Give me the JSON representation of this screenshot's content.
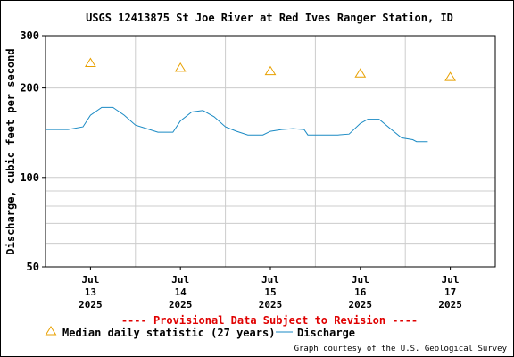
{
  "chart_data": {
    "type": "line",
    "title": "USGS 12413875 St Joe River at Red Ives Ranger Station, ID",
    "ylabel": "Discharge, cubic feet per second",
    "y_scale": "log",
    "ylim": [
      50,
      300
    ],
    "y_ticks": [
      50,
      100,
      200,
      300
    ],
    "y_tick_labels": [
      "50",
      "100",
      "200",
      "300"
    ],
    "x_range": [
      "2025-07-12 12:00",
      "2025-07-17 12:00"
    ],
    "x_ticks": [
      {
        "date": "2025-07-13",
        "lines": [
          "Jul",
          "13",
          "2025"
        ]
      },
      {
        "date": "2025-07-14",
        "lines": [
          "Jul",
          "14",
          "2025"
        ]
      },
      {
        "date": "2025-07-15",
        "lines": [
          "Jul",
          "15",
          "2025"
        ]
      },
      {
        "date": "2025-07-16",
        "lines": [
          "Jul",
          "16",
          "2025"
        ]
      },
      {
        "date": "2025-07-17",
        "lines": [
          "Jul",
          "17",
          "2025"
        ]
      }
    ],
    "grid": true,
    "series": [
      {
        "name": "Median daily statistic (27 years)",
        "type": "scatter",
        "marker": "triangle",
        "color": "#e8a000",
        "points": [
          {
            "x": "2025-07-13",
            "y": 243
          },
          {
            "x": "2025-07-14",
            "y": 234
          },
          {
            "x": "2025-07-15",
            "y": 228
          },
          {
            "x": "2025-07-16",
            "y": 224
          },
          {
            "x": "2025-07-17",
            "y": 218
          }
        ]
      },
      {
        "name": "Discharge",
        "type": "line",
        "color": "#1a8ac4",
        "points": [
          {
            "x": "2025-07-12 12:00",
            "y": 145
          },
          {
            "x": "2025-07-12 18:00",
            "y": 145
          },
          {
            "x": "2025-07-12 22:00",
            "y": 148
          },
          {
            "x": "2025-07-13 00:00",
            "y": 162
          },
          {
            "x": "2025-07-13 03:00",
            "y": 172
          },
          {
            "x": "2025-07-13 06:00",
            "y": 172
          },
          {
            "x": "2025-07-13 09:00",
            "y": 162
          },
          {
            "x": "2025-07-13 12:00",
            "y": 150
          },
          {
            "x": "2025-07-13 15:00",
            "y": 146
          },
          {
            "x": "2025-07-13 18:00",
            "y": 142
          },
          {
            "x": "2025-07-13 22:00",
            "y": 142
          },
          {
            "x": "2025-07-14 00:00",
            "y": 155
          },
          {
            "x": "2025-07-14 03:00",
            "y": 166
          },
          {
            "x": "2025-07-14 06:00",
            "y": 168
          },
          {
            "x": "2025-07-14 09:00",
            "y": 160
          },
          {
            "x": "2025-07-14 12:00",
            "y": 148
          },
          {
            "x": "2025-07-14 15:00",
            "y": 143
          },
          {
            "x": "2025-07-14 18:00",
            "y": 139
          },
          {
            "x": "2025-07-14 22:00",
            "y": 139
          },
          {
            "x": "2025-07-15 00:00",
            "y": 143
          },
          {
            "x": "2025-07-15 03:00",
            "y": 145
          },
          {
            "x": "2025-07-15 06:00",
            "y": 146
          },
          {
            "x": "2025-07-15 09:00",
            "y": 145
          },
          {
            "x": "2025-07-15 10:00",
            "y": 139
          },
          {
            "x": "2025-07-15 18:00",
            "y": 139
          },
          {
            "x": "2025-07-15 21:00",
            "y": 140
          },
          {
            "x": "2025-07-16 00:00",
            "y": 152
          },
          {
            "x": "2025-07-16 02:00",
            "y": 157
          },
          {
            "x": "2025-07-16 05:00",
            "y": 157
          },
          {
            "x": "2025-07-16 08:00",
            "y": 146
          },
          {
            "x": "2025-07-16 11:00",
            "y": 136
          },
          {
            "x": "2025-07-16 14:00",
            "y": 134
          },
          {
            "x": "2025-07-16 15:00",
            "y": 132
          },
          {
            "x": "2025-07-16 18:00",
            "y": 132
          }
        ]
      }
    ],
    "annotations": [
      "---- Provisional Data Subject to Revision ----"
    ],
    "legend": "bottom-left",
    "credit": "Graph courtesy of the U.S. Geological Survey"
  }
}
